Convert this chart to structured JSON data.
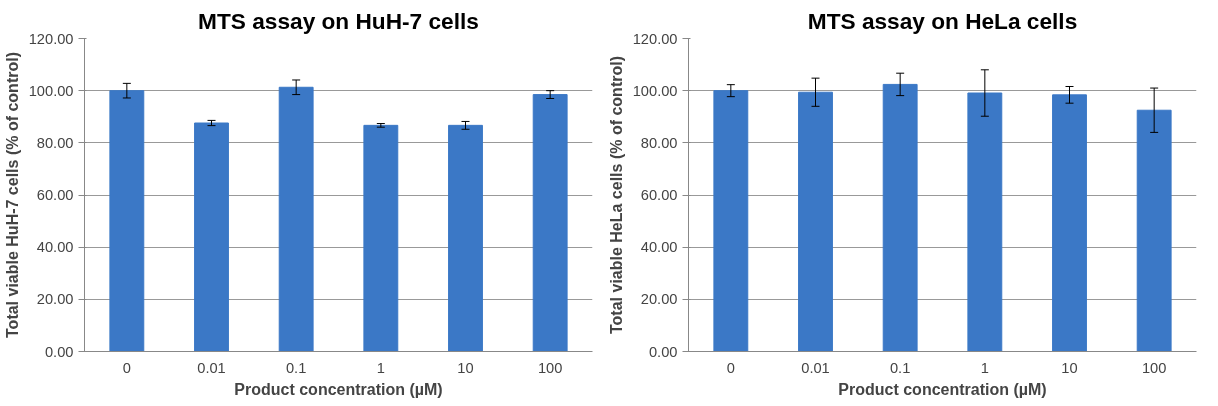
{
  "chart_data": [
    {
      "type": "bar",
      "title": "MTS assay on HuH-7 cells",
      "xlabel": "Product concentration (µM)",
      "ylabel": "Total viable HuH-7 cells (% of control)",
      "categories": [
        "0",
        "0.01",
        "0.1",
        "1",
        "10",
        "100"
      ],
      "values": [
        100,
        87.6,
        101.3,
        86.7,
        86.7,
        98.5
      ],
      "errors": [
        2.8,
        1,
        2.8,
        0.7,
        1.5,
        1.5
      ],
      "color": "#3b78c6",
      "ylim": [
        0,
        120
      ],
      "grid": "y",
      "yticks": [
        {
          "value": 0,
          "label": "0.00"
        },
        {
          "value": 20,
          "label": "20.00"
        },
        {
          "value": 40,
          "label": "40.00"
        },
        {
          "value": 60,
          "label": "60.00"
        },
        {
          "value": 80,
          "label": "80.00"
        },
        {
          "value": 100,
          "label": "100.00"
        },
        {
          "value": 120,
          "label": "120.00"
        }
      ]
    },
    {
      "type": "bar",
      "title": "MTS assay on HeLa cells",
      "xlabel": "Product concentration (µM)",
      "ylabel": "Total viable HeLa cells (% of control)",
      "categories": [
        "0",
        "0.01",
        "0.1",
        "1",
        "10",
        "100"
      ],
      "values": [
        100,
        99.4,
        102.4,
        99.1,
        98.4,
        92.5
      ],
      "errors": [
        2.3,
        5.4,
        4.3,
        8.9,
        3.2,
        8.5
      ],
      "color": "#3b78c6",
      "ylim": [
        0,
        120
      ],
      "grid": "y",
      "yticks": [
        {
          "value": 0,
          "label": "0.00"
        },
        {
          "value": 20,
          "label": "20.00"
        },
        {
          "value": 40,
          "label": "40.00"
        },
        {
          "value": 60,
          "label": "60.00"
        },
        {
          "value": 80,
          "label": "80.00"
        },
        {
          "value": 100,
          "label": "100.00"
        },
        {
          "value": 120,
          "label": "120.00"
        }
      ]
    }
  ]
}
